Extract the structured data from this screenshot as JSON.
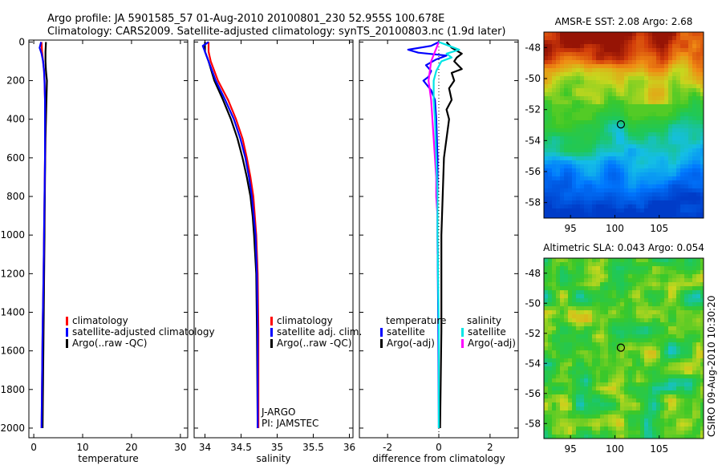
{
  "header": {
    "line1": "Argo profile: JA 5901585_57 01-Aug-2010 20100801_230 52.955S 100.678E",
    "line2": "Climatology: CARS2009. Satellite-adjusted climatology: synTS_20100803.nc (1.9d later)"
  },
  "credit": "CSIRO 09-Aug-2010 10:30:20",
  "colors": {
    "climatology": "#ff0000",
    "satellite": "#0000ff",
    "argo": "#000000",
    "sal_satellite": "#00e5e5",
    "sal_argo": "#ff00ff"
  },
  "chart_data": [
    {
      "id": "temperature",
      "type": "line",
      "xlabel": "temperature",
      "ylabel": "",
      "xlim": [
        -1,
        31.5
      ],
      "ylim": [
        2050,
        -10
      ],
      "xticks": [
        "0",
        "10",
        "20",
        "30"
      ],
      "xtick_values": [
        0,
        10,
        20,
        30
      ],
      "yticks": [
        "0",
        "200",
        "400",
        "600",
        "800",
        "1000",
        "1200",
        "1400",
        "1600",
        "1800",
        "2000"
      ],
      "ytick_values": [
        0,
        200,
        400,
        600,
        800,
        1000,
        1200,
        1400,
        1600,
        1800,
        2000
      ],
      "legend": [
        "climatology",
        "satellite-adjusted climatology",
        "Argo(..raw -QC)"
      ],
      "series": [
        {
          "name": "Argo(..raw -QC)",
          "color_key": "argo",
          "depth": [
            0,
            50,
            100,
            150,
            200,
            300,
            400,
            500,
            700,
            1000,
            1500,
            2000
          ],
          "values": [
            2.5,
            2.4,
            2.4,
            2.5,
            2.7,
            2.6,
            2.5,
            2.4,
            2.3,
            2.2,
            2.0,
            1.8
          ]
        },
        {
          "name": "climatology",
          "color_key": "climatology",
          "depth": [
            0,
            50,
            100,
            150,
            200,
            300,
            400,
            600,
            800,
            1000,
            1200,
            1500,
            2000
          ],
          "values": [
            1.6,
            1.7,
            1.9,
            2.1,
            2.2,
            2.3,
            2.3,
            2.3,
            2.2,
            2.1,
            2.0,
            1.8,
            1.6
          ]
        },
        {
          "name": "satellite-adjusted climatology",
          "color_key": "satellite",
          "depth": [
            0,
            30,
            60,
            100,
            150,
            200,
            300,
            400,
            600,
            800,
            1000,
            1200,
            1500,
            2000
          ],
          "values": [
            1.5,
            1.2,
            1.6,
            1.9,
            2.1,
            2.2,
            2.3,
            2.3,
            2.3,
            2.2,
            2.1,
            2.0,
            1.8,
            1.6
          ]
        }
      ]
    },
    {
      "id": "salinity",
      "type": "line",
      "xlabel": "salinity",
      "ylabel": "",
      "xlim": [
        33.85,
        36.05
      ],
      "ylim": [
        2050,
        -10
      ],
      "xticks": [
        "34",
        "34.5",
        "35",
        "35.5",
        "36"
      ],
      "xtick_values": [
        34,
        34.5,
        35,
        35.5,
        36
      ],
      "legend": [
        "climatology",
        "satellite adj. clim.",
        "Argo(..raw -QC)"
      ],
      "annotations": [
        "J-ARGO",
        "PI: JAMSTEC"
      ],
      "series": [
        {
          "name": "Argo(..raw -QC)",
          "color_key": "argo",
          "depth": [
            0,
            50,
            100,
            200,
            300,
            400,
            500,
            600,
            700,
            800,
            900,
            1000,
            1200,
            1500,
            2000
          ],
          "values": [
            34.0,
            34.0,
            34.05,
            34.13,
            34.25,
            34.36,
            34.45,
            34.52,
            34.58,
            34.63,
            34.66,
            34.68,
            34.71,
            34.72,
            34.73
          ]
        },
        {
          "name": "climatology",
          "color_key": "climatology",
          "depth": [
            0,
            50,
            100,
            200,
            300,
            400,
            500,
            600,
            700,
            800,
            1000,
            1200,
            1500,
            2000
          ],
          "values": [
            34.05,
            34.05,
            34.08,
            34.18,
            34.32,
            34.43,
            34.52,
            34.58,
            34.63,
            34.67,
            34.71,
            34.73,
            34.74,
            34.74
          ]
        },
        {
          "name": "satellite adj. clim.",
          "color_key": "satellite",
          "depth": [
            0,
            20,
            50,
            100,
            200,
            300,
            400,
            500,
            600,
            700,
            800,
            1000,
            1200,
            1500,
            2000
          ],
          "values": [
            34.05,
            33.97,
            34.0,
            34.05,
            34.15,
            34.28,
            34.4,
            34.49,
            34.56,
            34.61,
            34.65,
            34.7,
            34.72,
            34.73,
            34.73
          ]
        }
      ]
    },
    {
      "id": "difference",
      "type": "line",
      "xlabel": "difference from climatology",
      "ylabel": "",
      "xlim": [
        -3.1,
        3.1
      ],
      "ylim": [
        2050,
        -10
      ],
      "xticks": [
        "-2",
        "0",
        "2"
      ],
      "xtick_values": [
        -2,
        0,
        2
      ],
      "legend_left_title": "temperature",
      "legend_left": [
        "satellite",
        "Argo(-adj)"
      ],
      "legend_right_title": "salinity",
      "legend_right": [
        "satellite",
        "Argo(-adj)"
      ],
      "series": [
        {
          "name": "temperature satellite",
          "color_key": "satellite",
          "depth": [
            0,
            20,
            40,
            55,
            70,
            90,
            120,
            150,
            180,
            200,
            250,
            300,
            400,
            600,
            800,
            1000,
            1500,
            2000
          ],
          "values": [
            0.0,
            -0.3,
            -1.2,
            -0.8,
            0.3,
            -0.1,
            -0.5,
            -0.3,
            -0.4,
            -0.6,
            -0.3,
            -0.15,
            -0.1,
            -0.05,
            -0.05,
            -0.05,
            -0.02,
            0.0
          ]
        },
        {
          "name": "temperature Argo(-adj)",
          "color_key": "argo",
          "depth": [
            0,
            30,
            60,
            80,
            100,
            140,
            160,
            200,
            240,
            300,
            350,
            400,
            500,
            600,
            800,
            1000,
            1500,
            2000
          ],
          "values": [
            0.3,
            0.5,
            0.9,
            0.7,
            0.6,
            0.9,
            0.5,
            0.6,
            0.4,
            0.5,
            0.3,
            0.4,
            0.3,
            0.2,
            0.15,
            0.1,
            0.1,
            0.05
          ]
        },
        {
          "name": "salinity Argo(-adj)",
          "color_key": "sal_argo",
          "depth": [
            0,
            100,
            200,
            300,
            400,
            500,
            600,
            700,
            800,
            900,
            1000,
            1100
          ],
          "values": [
            0.0,
            -0.3,
            -0.4,
            -0.3,
            -0.25,
            -0.2,
            -0.15,
            -0.1,
            -0.1,
            -0.05,
            -0.05,
            -0.05
          ]
        },
        {
          "name": "salinity satellite",
          "color_key": "sal_satellite",
          "depth": [
            0,
            20,
            40,
            60,
            80,
            100,
            150,
            200,
            300,
            400,
            600,
            800,
            1000,
            1500,
            2000
          ],
          "values": [
            0.0,
            0.4,
            0.8,
            0.3,
            0.5,
            0.1,
            -0.1,
            -0.2,
            -0.2,
            -0.15,
            -0.1,
            -0.05,
            -0.05,
            0.0,
            0.0
          ]
        }
      ]
    },
    {
      "id": "sst_map",
      "type": "heatmap",
      "title": "AMSR-E SST: 2.08 Argo: 2.68",
      "xlim": [
        92,
        110
      ],
      "ylim": [
        -59,
        -47
      ],
      "xticks": [
        "95",
        "100",
        "105"
      ],
      "xtick_values": [
        95,
        100,
        105
      ],
      "yticks": [
        "-48",
        "-50",
        "-52",
        "-54",
        "-56",
        "-58"
      ],
      "ytick_values": [
        -48,
        -50,
        -52,
        -54,
        -56,
        -58
      ],
      "marker": {
        "lon": 100.678,
        "lat": -52.955
      }
    },
    {
      "id": "sla_map",
      "type": "heatmap",
      "title": "Altimetric SLA: 0.043 Argo: 0.054",
      "xlim": [
        92,
        110
      ],
      "ylim": [
        -59,
        -47
      ],
      "xticks": [
        "95",
        "100",
        "105"
      ],
      "xtick_values": [
        95,
        100,
        105
      ],
      "yticks": [
        "-48",
        "-50",
        "-52",
        "-54",
        "-56",
        "-58"
      ],
      "ytick_values": [
        -48,
        -50,
        -52,
        -54,
        -56,
        -58
      ],
      "marker": {
        "lon": 100.678,
        "lat": -52.955
      }
    }
  ]
}
